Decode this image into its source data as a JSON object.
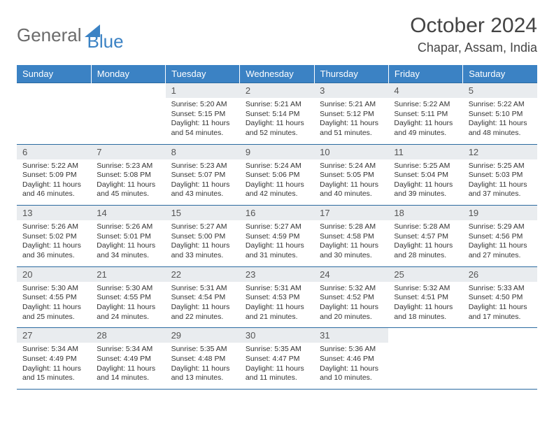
{
  "brand": {
    "part1": "General",
    "part2": "Blue"
  },
  "title": "October 2024",
  "location": "Chapar, Assam, India",
  "weekdays": [
    "Sunday",
    "Monday",
    "Tuesday",
    "Wednesday",
    "Thursday",
    "Friday",
    "Saturday"
  ],
  "colors": {
    "header_bg": "#3b82c4",
    "daynum_bg": "#e9ecef",
    "rule": "#2a6aa0",
    "text": "#333333",
    "logo_gray": "#6b6b6b",
    "logo_blue": "#3b82c4"
  },
  "grid": [
    [
      null,
      null,
      {
        "n": "1",
        "sr": "Sunrise: 5:20 AM",
        "ss": "Sunset: 5:15 PM",
        "d1": "Daylight: 11 hours",
        "d2": "and 54 minutes."
      },
      {
        "n": "2",
        "sr": "Sunrise: 5:21 AM",
        "ss": "Sunset: 5:14 PM",
        "d1": "Daylight: 11 hours",
        "d2": "and 52 minutes."
      },
      {
        "n": "3",
        "sr": "Sunrise: 5:21 AM",
        "ss": "Sunset: 5:12 PM",
        "d1": "Daylight: 11 hours",
        "d2": "and 51 minutes."
      },
      {
        "n": "4",
        "sr": "Sunrise: 5:22 AM",
        "ss": "Sunset: 5:11 PM",
        "d1": "Daylight: 11 hours",
        "d2": "and 49 minutes."
      },
      {
        "n": "5",
        "sr": "Sunrise: 5:22 AM",
        "ss": "Sunset: 5:10 PM",
        "d1": "Daylight: 11 hours",
        "d2": "and 48 minutes."
      }
    ],
    [
      {
        "n": "6",
        "sr": "Sunrise: 5:22 AM",
        "ss": "Sunset: 5:09 PM",
        "d1": "Daylight: 11 hours",
        "d2": "and 46 minutes."
      },
      {
        "n": "7",
        "sr": "Sunrise: 5:23 AM",
        "ss": "Sunset: 5:08 PM",
        "d1": "Daylight: 11 hours",
        "d2": "and 45 minutes."
      },
      {
        "n": "8",
        "sr": "Sunrise: 5:23 AM",
        "ss": "Sunset: 5:07 PM",
        "d1": "Daylight: 11 hours",
        "d2": "and 43 minutes."
      },
      {
        "n": "9",
        "sr": "Sunrise: 5:24 AM",
        "ss": "Sunset: 5:06 PM",
        "d1": "Daylight: 11 hours",
        "d2": "and 42 minutes."
      },
      {
        "n": "10",
        "sr": "Sunrise: 5:24 AM",
        "ss": "Sunset: 5:05 PM",
        "d1": "Daylight: 11 hours",
        "d2": "and 40 minutes."
      },
      {
        "n": "11",
        "sr": "Sunrise: 5:25 AM",
        "ss": "Sunset: 5:04 PM",
        "d1": "Daylight: 11 hours",
        "d2": "and 39 minutes."
      },
      {
        "n": "12",
        "sr": "Sunrise: 5:25 AM",
        "ss": "Sunset: 5:03 PM",
        "d1": "Daylight: 11 hours",
        "d2": "and 37 minutes."
      }
    ],
    [
      {
        "n": "13",
        "sr": "Sunrise: 5:26 AM",
        "ss": "Sunset: 5:02 PM",
        "d1": "Daylight: 11 hours",
        "d2": "and 36 minutes."
      },
      {
        "n": "14",
        "sr": "Sunrise: 5:26 AM",
        "ss": "Sunset: 5:01 PM",
        "d1": "Daylight: 11 hours",
        "d2": "and 34 minutes."
      },
      {
        "n": "15",
        "sr": "Sunrise: 5:27 AM",
        "ss": "Sunset: 5:00 PM",
        "d1": "Daylight: 11 hours",
        "d2": "and 33 minutes."
      },
      {
        "n": "16",
        "sr": "Sunrise: 5:27 AM",
        "ss": "Sunset: 4:59 PM",
        "d1": "Daylight: 11 hours",
        "d2": "and 31 minutes."
      },
      {
        "n": "17",
        "sr": "Sunrise: 5:28 AM",
        "ss": "Sunset: 4:58 PM",
        "d1": "Daylight: 11 hours",
        "d2": "and 30 minutes."
      },
      {
        "n": "18",
        "sr": "Sunrise: 5:28 AM",
        "ss": "Sunset: 4:57 PM",
        "d1": "Daylight: 11 hours",
        "d2": "and 28 minutes."
      },
      {
        "n": "19",
        "sr": "Sunrise: 5:29 AM",
        "ss": "Sunset: 4:56 PM",
        "d1": "Daylight: 11 hours",
        "d2": "and 27 minutes."
      }
    ],
    [
      {
        "n": "20",
        "sr": "Sunrise: 5:30 AM",
        "ss": "Sunset: 4:55 PM",
        "d1": "Daylight: 11 hours",
        "d2": "and 25 minutes."
      },
      {
        "n": "21",
        "sr": "Sunrise: 5:30 AM",
        "ss": "Sunset: 4:55 PM",
        "d1": "Daylight: 11 hours",
        "d2": "and 24 minutes."
      },
      {
        "n": "22",
        "sr": "Sunrise: 5:31 AM",
        "ss": "Sunset: 4:54 PM",
        "d1": "Daylight: 11 hours",
        "d2": "and 22 minutes."
      },
      {
        "n": "23",
        "sr": "Sunrise: 5:31 AM",
        "ss": "Sunset: 4:53 PM",
        "d1": "Daylight: 11 hours",
        "d2": "and 21 minutes."
      },
      {
        "n": "24",
        "sr": "Sunrise: 5:32 AM",
        "ss": "Sunset: 4:52 PM",
        "d1": "Daylight: 11 hours",
        "d2": "and 20 minutes."
      },
      {
        "n": "25",
        "sr": "Sunrise: 5:32 AM",
        "ss": "Sunset: 4:51 PM",
        "d1": "Daylight: 11 hours",
        "d2": "and 18 minutes."
      },
      {
        "n": "26",
        "sr": "Sunrise: 5:33 AM",
        "ss": "Sunset: 4:50 PM",
        "d1": "Daylight: 11 hours",
        "d2": "and 17 minutes."
      }
    ],
    [
      {
        "n": "27",
        "sr": "Sunrise: 5:34 AM",
        "ss": "Sunset: 4:49 PM",
        "d1": "Daylight: 11 hours",
        "d2": "and 15 minutes."
      },
      {
        "n": "28",
        "sr": "Sunrise: 5:34 AM",
        "ss": "Sunset: 4:49 PM",
        "d1": "Daylight: 11 hours",
        "d2": "and 14 minutes."
      },
      {
        "n": "29",
        "sr": "Sunrise: 5:35 AM",
        "ss": "Sunset: 4:48 PM",
        "d1": "Daylight: 11 hours",
        "d2": "and 13 minutes."
      },
      {
        "n": "30",
        "sr": "Sunrise: 5:35 AM",
        "ss": "Sunset: 4:47 PM",
        "d1": "Daylight: 11 hours",
        "d2": "and 11 minutes."
      },
      {
        "n": "31",
        "sr": "Sunrise: 5:36 AM",
        "ss": "Sunset: 4:46 PM",
        "d1": "Daylight: 11 hours",
        "d2": "and 10 minutes."
      },
      null,
      null
    ]
  ]
}
